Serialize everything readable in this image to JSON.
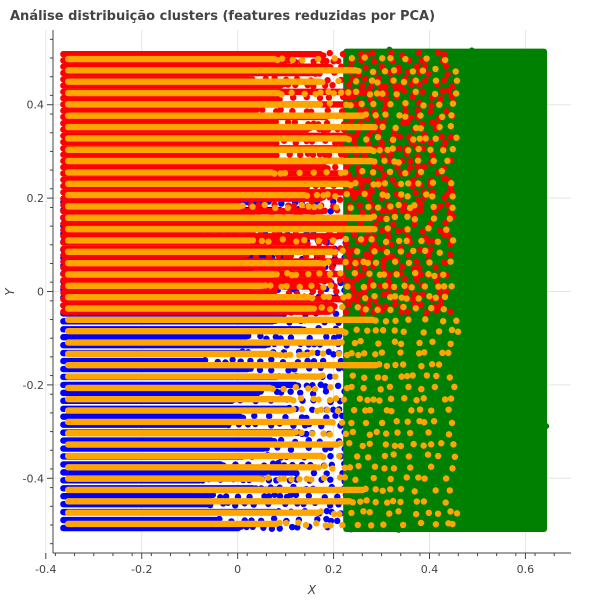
{
  "chart_data": {
    "type": "scatter",
    "title": "Análise distribuição clusters (features reduzidas por PCA)",
    "xlabel": "X",
    "ylabel": "Y",
    "xlim": [
      -0.385,
      0.695
    ],
    "ylim": [
      -0.56,
      0.56
    ],
    "x_ticks": [
      -0.4,
      -0.2,
      0,
      0.2,
      0.4,
      0.6
    ],
    "y_ticks": [
      -0.4,
      -0.2,
      0,
      0.2,
      0.4
    ],
    "grid": true,
    "legend": "none",
    "series": [
      {
        "color": "#0000ff",
        "regions": [
          {
            "x": [
              -0.37,
              0.27
            ],
            "y": [
              -0.515,
              0.2
            ]
          }
        ]
      },
      {
        "color": "#008000",
        "regions": [
          {
            "x": [
              0.22,
              0.645
            ],
            "y": [
              -0.515,
              0.52
            ]
          }
        ]
      },
      {
        "color": "#ff0000",
        "regions": [
          {
            "x": [
              -0.37,
              0.45
            ],
            "y": [
              -0.05,
              0.515
            ]
          }
        ]
      },
      {
        "color": "#ffa500",
        "regions": [
          {
            "x": [
              -0.36,
              0.46
            ],
            "y": [
              -0.51,
              0.51
            ]
          }
        ]
      }
    ]
  }
}
